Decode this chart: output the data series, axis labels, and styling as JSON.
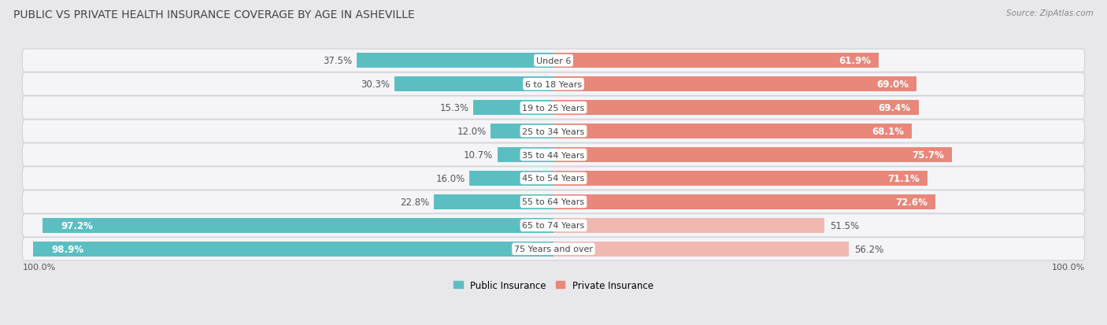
{
  "title": "PUBLIC VS PRIVATE HEALTH INSURANCE COVERAGE BY AGE IN ASHEVILLE",
  "source": "Source: ZipAtlas.com",
  "categories": [
    "Under 6",
    "6 to 18 Years",
    "19 to 25 Years",
    "25 to 34 Years",
    "35 to 44 Years",
    "45 to 54 Years",
    "55 to 64 Years",
    "65 to 74 Years",
    "75 Years and over"
  ],
  "public_values": [
    37.5,
    30.3,
    15.3,
    12.0,
    10.7,
    16.0,
    22.8,
    97.2,
    98.9
  ],
  "private_values": [
    61.9,
    69.0,
    69.4,
    68.1,
    75.7,
    71.1,
    72.6,
    51.5,
    56.2
  ],
  "public_color": "#5bbfc2",
  "private_color": "#e8877a",
  "private_color_light": "#f0b8b0",
  "bg_color": "#e8e8ec",
  "row_bg_color": "#f5f5f8",
  "row_edge_color": "#d0d0d8",
  "value_color_dark": "#555555",
  "value_color_white": "#ffffff",
  "center_label_color": "#444444",
  "title_color": "#444444",
  "source_color": "#888888",
  "label_fontsize": 8.5,
  "title_fontsize": 10,
  "source_fontsize": 7.5,
  "legend_fontsize": 8.5,
  "bar_height": 0.62,
  "x_axis_label": "100.0%",
  "high_public_indices": [
    7,
    8
  ]
}
